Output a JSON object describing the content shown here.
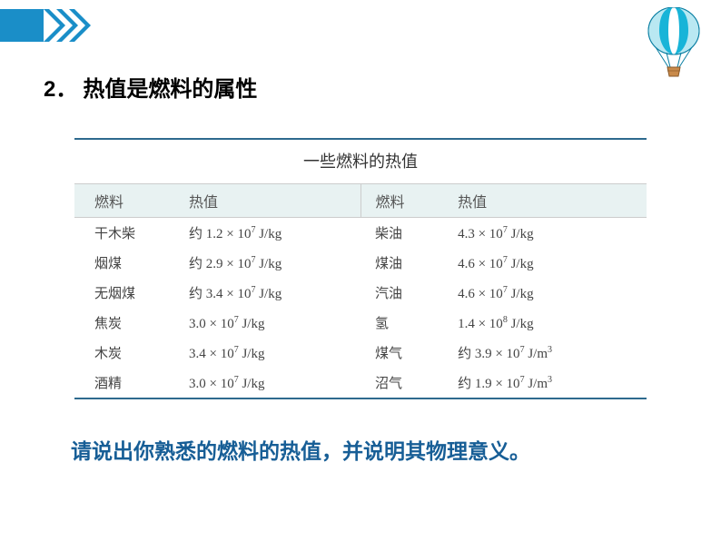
{
  "heading_num": "2．",
  "heading_text": "热值是燃料的属性",
  "table": {
    "title": "一些燃料的热值",
    "headers": {
      "fuel": "燃料",
      "value": "热值"
    },
    "rows": [
      {
        "f1": "干木柴",
        "v1": "约 1.2 × 10<sup>7</sup> J/kg",
        "f2": "柴油",
        "v2": "4.3 × 10<sup>7</sup> J/kg"
      },
      {
        "f1": "烟煤",
        "v1": "约 2.9 × 10<sup>7</sup> J/kg",
        "f2": "煤油",
        "v2": "4.6 × 10<sup>7</sup> J/kg"
      },
      {
        "f1": "无烟煤",
        "v1": "约 3.4 × 10<sup>7</sup> J/kg",
        "f2": "汽油",
        "v2": "4.6 × 10<sup>7</sup> J/kg"
      },
      {
        "f1": "焦炭",
        "v1": "3.0 × 10<sup>7</sup> J/kg",
        "f2": "氢",
        "v2": "1.4 × 10<sup>8</sup> J/kg"
      },
      {
        "f1": "木炭",
        "v1": "3.4 × 10<sup>7</sup> J/kg",
        "f2": "煤气",
        "v2": "约 3.9 × 10<sup>7</sup> J/m<sup>3</sup>"
      },
      {
        "f1": "酒精",
        "v1": "3.0 × 10<sup>7</sup> J/kg",
        "f2": "沼气",
        "v2": "约 1.9 × 10<sup>7</sup> J/m<sup>3</sup>"
      }
    ]
  },
  "question": "请说出你熟悉的燃料的热值，并说明其物理意义。",
  "style": {
    "accent": "#175e96",
    "table_border": "#2e6a8e",
    "header_bg": "#e8f2f2",
    "chevron_color": "#1a8ec8",
    "balloon_main": "#18b4d8",
    "balloon_light": "#b9e8f2"
  }
}
